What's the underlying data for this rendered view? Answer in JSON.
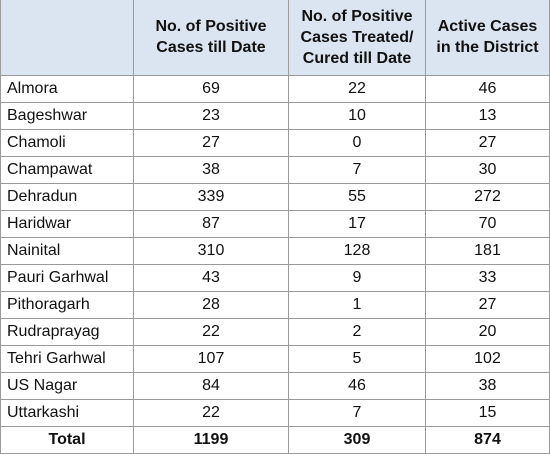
{
  "table": {
    "header": [
      [
        "No. of Positive",
        "Cases till Date"
      ],
      [
        "No. of Positive",
        "Cases Treated/",
        "Cured till Date"
      ],
      [
        "Active Cases",
        "in the District"
      ]
    ],
    "rows": [
      [
        "Almora",
        69,
        22,
        46
      ],
      [
        "Bageshwar",
        23,
        10,
        13
      ],
      [
        "Chamoli",
        27,
        0,
        27
      ],
      [
        "Champawat",
        38,
        7,
        30
      ],
      [
        "Dehradun",
        339,
        55,
        272
      ],
      [
        "Haridwar",
        87,
        17,
        70
      ],
      [
        "Nainital",
        310,
        128,
        181
      ],
      [
        "Pauri Garhwal",
        43,
        9,
        33
      ],
      [
        "Pithoragarh",
        28,
        1,
        27
      ],
      [
        "Rudraprayag",
        22,
        2,
        20
      ],
      [
        "Tehri Garhwal",
        107,
        5,
        102
      ],
      [
        "US Nagar",
        84,
        46,
        38
      ],
      [
        "Uttarkashi",
        22,
        7,
        15
      ]
    ],
    "total": [
      "Total",
      1199,
      309,
      874
    ]
  }
}
